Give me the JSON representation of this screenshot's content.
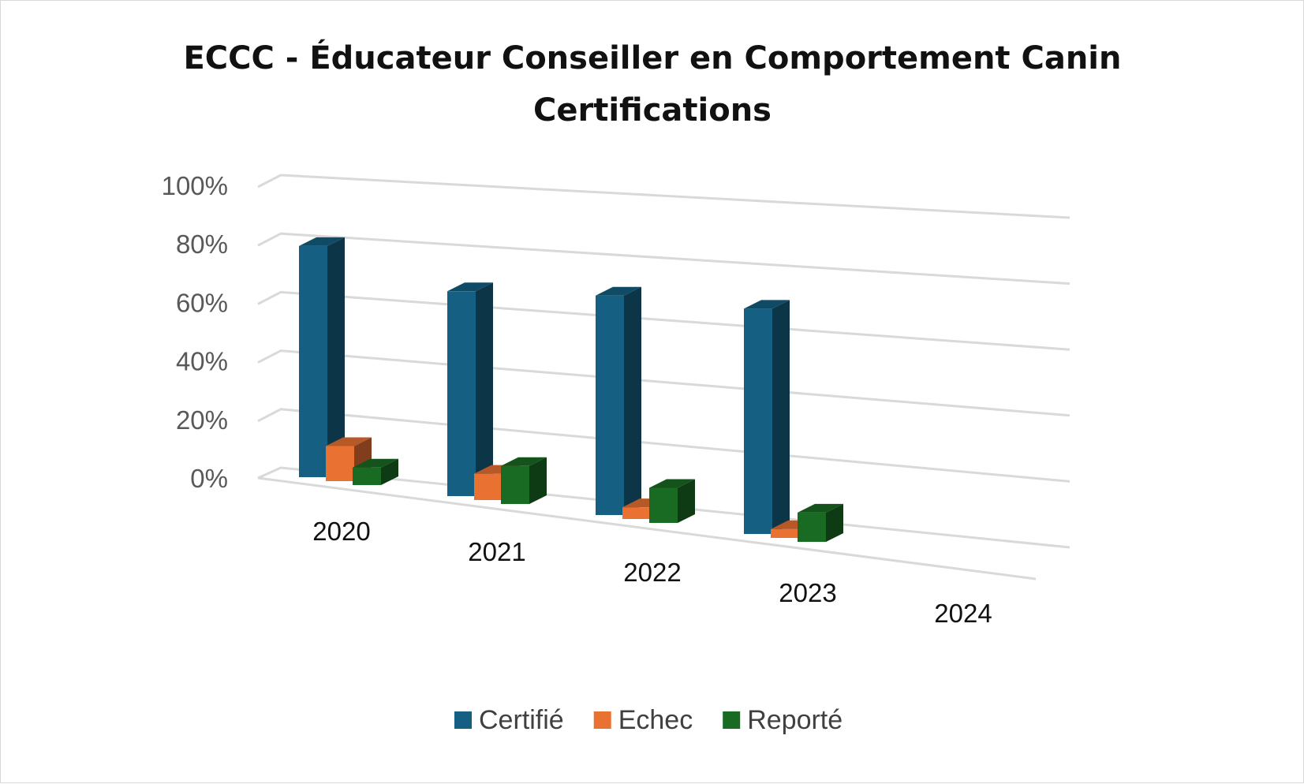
{
  "chart_data": {
    "type": "bar",
    "title": [
      "ECCC - Éducateur Conseiller en Comportement Canin",
      "Certifications"
    ],
    "categories": [
      "2020",
      "2021",
      "2022",
      "2023",
      "2024"
    ],
    "series": [
      {
        "name": "Certifié",
        "values": [
          79,
          70,
          75,
          77,
          null
        ],
        "color": "#156082"
      },
      {
        "name": "Echec",
        "values": [
          12,
          9,
          4,
          3,
          null
        ],
        "color": "#E97132"
      },
      {
        "name": "Reporté",
        "values": [
          6,
          13,
          12,
          10,
          null
        ],
        "color": "#196B24"
      }
    ],
    "ylim": [
      0,
      100
    ],
    "y_ticks": [
      "0%",
      "20%",
      "40%",
      "60%",
      "80%",
      "100%"
    ],
    "grid": true,
    "legend_position": "bottom",
    "style": "3d-column"
  }
}
